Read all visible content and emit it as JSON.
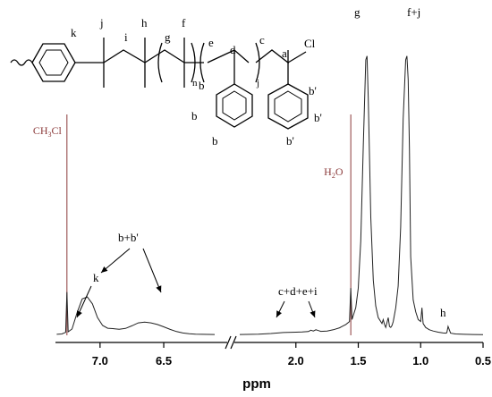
{
  "chart_data": {
    "type": "line",
    "title": "",
    "xlabel": "ppm",
    "ylabel": "",
    "x_axis": {
      "reversed": true,
      "broken": true,
      "segments": [
        {
          "range": [
            7.35,
            6.1
          ],
          "ticks": [
            7.0,
            6.5
          ],
          "tick_labels": [
            "7.0",
            "6.5"
          ]
        },
        {
          "range": [
            2.45,
            0.5
          ],
          "ticks": [
            2.0,
            1.5,
            1.0,
            0.5
          ],
          "tick_labels": [
            "2.0",
            "1.5",
            "1.0",
            "0.5"
          ]
        }
      ]
    },
    "grid": false,
    "legend": "none",
    "colors": {
      "spectrum": "#222222",
      "reference_line": "#8b3a3a",
      "reference_text": "#8b3a3a",
      "axis": "#000000"
    },
    "reference_lines": [
      {
        "x": 7.26,
        "label": "CH3Cl",
        "label_parts": [
          "CH",
          "3",
          "Cl"
        ]
      },
      {
        "x": 1.56,
        "label": "H2O",
        "label_parts": [
          "H",
          "2",
          "O"
        ]
      }
    ],
    "series": [
      {
        "segment": 0,
        "x": [
          7.34,
          7.3,
          7.27,
          7.26,
          7.25,
          7.22,
          7.18,
          7.14,
          7.1,
          7.06,
          7.02,
          6.98,
          6.94,
          6.9,
          6.85,
          6.8,
          6.75,
          6.7,
          6.65,
          6.6,
          6.55,
          6.5,
          6.45,
          6.4,
          6.35,
          6.3,
          6.25,
          6.2,
          6.15,
          6.1
        ],
        "y": [
          0.5,
          0.7,
          1.5,
          22,
          1.8,
          3.2,
          11.5,
          18.5,
          19.5,
          16,
          9,
          5,
          3.6,
          3.4,
          3.1,
          3.5,
          4.8,
          6.3,
          6.7,
          6.3,
          5.5,
          4.3,
          3,
          1.9,
          1.2,
          0.8,
          0.6,
          0.5,
          0.45,
          0.4
        ]
      },
      {
        "segment": 1,
        "x": [
          2.45,
          2.3,
          2.2,
          2.1,
          2.0,
          1.95,
          1.9,
          1.88,
          1.86,
          1.84,
          1.82,
          1.8,
          1.75,
          1.7,
          1.65,
          1.6,
          1.57,
          1.56,
          1.55,
          1.52,
          1.5,
          1.48,
          1.46,
          1.44,
          1.43,
          1.42,
          1.4,
          1.38,
          1.36,
          1.34,
          1.31,
          1.3,
          1.29,
          1.28,
          1.26,
          1.25,
          1.24,
          1.23,
          1.22,
          1.2,
          1.18,
          1.16,
          1.14,
          1.12,
          1.11,
          1.1,
          1.09,
          1.08,
          1.06,
          1.04,
          1.02,
          1.0,
          0.99,
          0.98,
          0.96,
          0.93,
          0.9,
          0.86,
          0.82,
          0.8,
          0.79,
          0.78,
          0.76,
          0.72,
          0.65,
          0.58,
          0.5
        ],
        "y": [
          0.4,
          0.6,
          0.9,
          1.4,
          1.6,
          1.7,
          1.9,
          2.6,
          2.2,
          2.8,
          2.4,
          2.0,
          2.2,
          2.8,
          3.8,
          5.5,
          7,
          24,
          8,
          14,
          24,
          48,
          96,
          140,
          142,
          120,
          60,
          28,
          15,
          9,
          6,
          8,
          5.5,
          4,
          9,
          4.5,
          4,
          5,
          7,
          14,
          25,
          55,
          110,
          140,
          142,
          130,
          95,
          40,
          18,
          12,
          8,
          7,
          14,
          6,
          4,
          2.8,
          2.2,
          1.6,
          1.2,
          1.1,
          1.3,
          4.5,
          1.1,
          0.7,
          0.5,
          0.4,
          0.35
        ]
      }
    ],
    "annotations": [
      {
        "text": "k",
        "points_to_x": [
          7.28
        ]
      },
      {
        "text": "b+b'",
        "points_to_x": [
          7.12,
          6.85
        ]
      },
      {
        "text": "c+d+e+i",
        "points_to_x": [
          2.05,
          1.85
        ]
      },
      {
        "text": "h",
        "near_x": 0.79
      },
      {
        "text": "g",
        "near_x": 1.43
      },
      {
        "text": "f+j",
        "near_x": 1.11
      }
    ],
    "structure_labels": [
      "k",
      "j",
      "i",
      "h",
      "g",
      "f",
      "e",
      "d",
      "c",
      "a",
      "Cl",
      "n",
      "j",
      "b",
      "b",
      "b",
      "b'",
      "b'",
      "b'"
    ]
  }
}
